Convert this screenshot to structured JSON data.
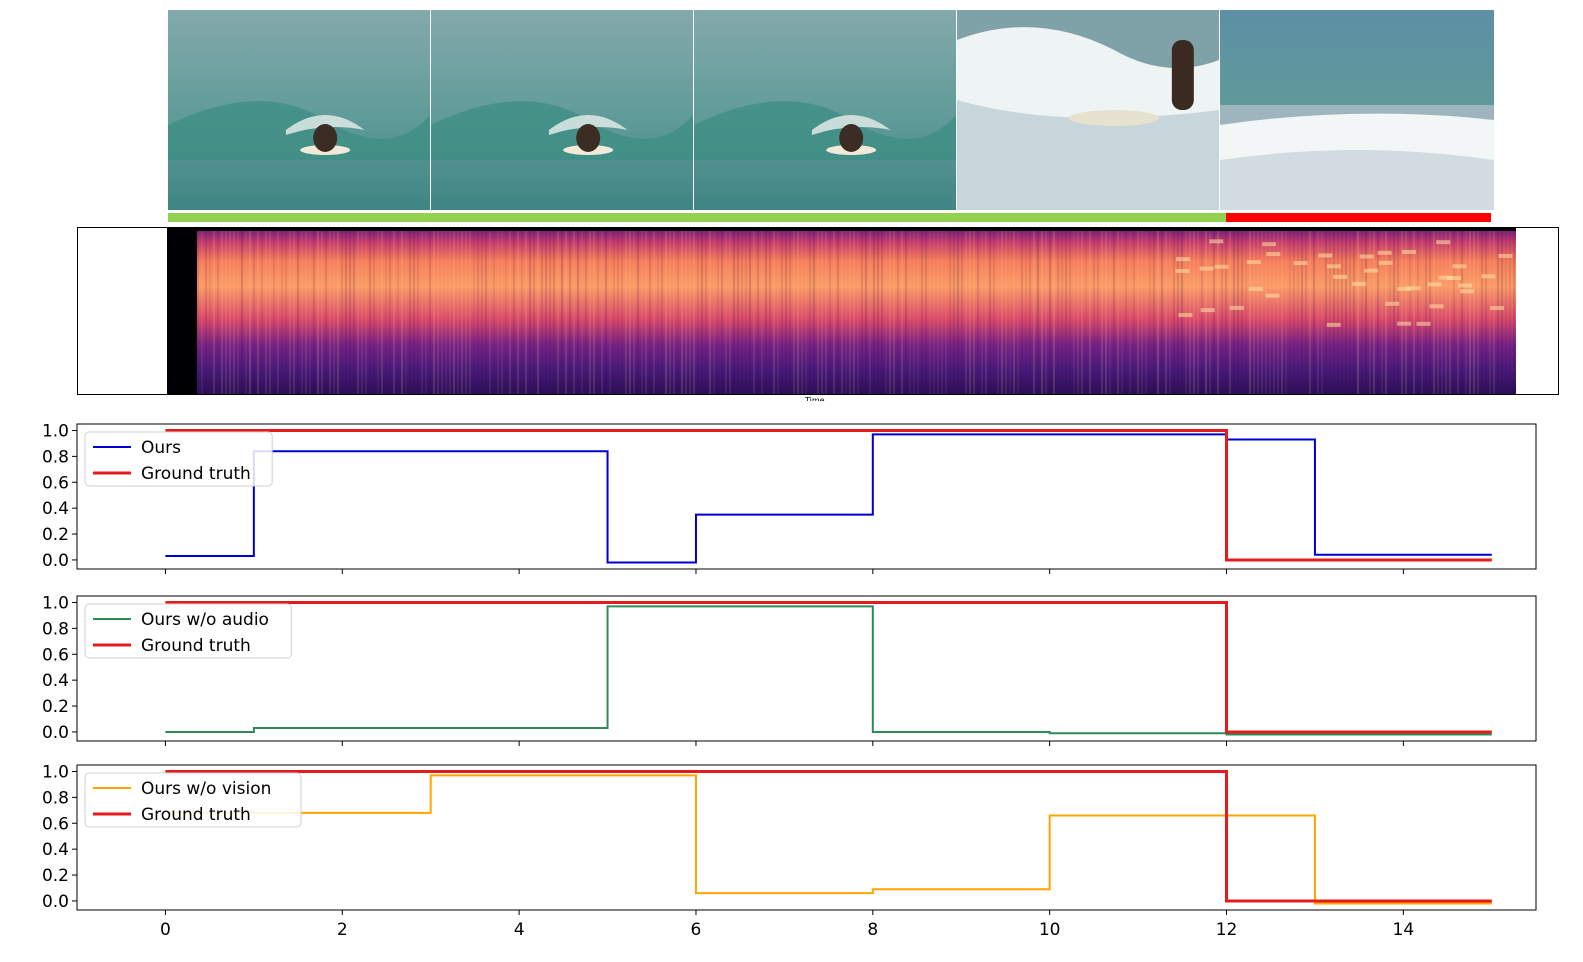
{
  "frames": [
    {
      "name": "frame-1-paddling",
      "scene": "surfer paddling on wave"
    },
    {
      "name": "frame-2-paddling",
      "scene": "surfer paddling"
    },
    {
      "name": "frame-3-popup",
      "scene": "surfer popping up"
    },
    {
      "name": "frame-4-riding",
      "scene": "surfer standing in white water"
    },
    {
      "name": "frame-5-whitewater",
      "scene": "white water, no surfer"
    }
  ],
  "status_bar": {
    "segments": [
      {
        "state": "match",
        "start": 0,
        "end": 12,
        "color": "#92d050"
      },
      {
        "state": "mismatch",
        "start": 12,
        "end": 15,
        "color": "#ff0000"
      }
    ]
  },
  "spectrogram": {
    "xlabel": "Time",
    "colormap": "magma"
  },
  "colors": {
    "ours": "#0000cc",
    "ours_wo_audio": "#2e8b57",
    "ours_wo_vision": "#ffa500",
    "ground_truth": "#e41a1c"
  },
  "chart_data": [
    {
      "type": "line",
      "drawstyle": "steps-post",
      "xlim": [
        -1,
        15.5
      ],
      "ylim": [
        -0.07,
        1.05
      ],
      "yticks": [
        "0.0",
        "0.2",
        "0.4",
        "0.6",
        "0.8",
        "1.0"
      ],
      "xticks": [
        "0",
        "2",
        "4",
        "6",
        "8",
        "10",
        "12",
        "14"
      ],
      "show_xtick_labels": false,
      "legend_position": "upper-left",
      "series": [
        {
          "name": "Ours",
          "color": "#0000cc",
          "x": [
            0,
            1,
            5,
            6,
            8,
            12,
            13,
            15
          ],
          "y": [
            0.03,
            0.84,
            -0.02,
            0.35,
            0.97,
            0.93,
            0.04,
            0.04
          ]
        },
        {
          "name": "Ground truth",
          "color": "#e41a1c",
          "x": [
            0,
            12,
            15
          ],
          "y": [
            1.0,
            0.0,
            0.0
          ]
        }
      ]
    },
    {
      "type": "line",
      "drawstyle": "steps-post",
      "xlim": [
        -1,
        15.5
      ],
      "ylim": [
        -0.07,
        1.05
      ],
      "yticks": [
        "0.0",
        "0.2",
        "0.4",
        "0.6",
        "0.8",
        "1.0"
      ],
      "xticks": [
        "0",
        "2",
        "4",
        "6",
        "8",
        "10",
        "12",
        "14"
      ],
      "show_xtick_labels": false,
      "legend_position": "upper-left",
      "series": [
        {
          "name": "Ours w/o audio",
          "color": "#2e8b57",
          "x": [
            0,
            1,
            5,
            8,
            10,
            12,
            15
          ],
          "y": [
            0.0,
            0.03,
            0.97,
            0.0,
            -0.01,
            -0.02,
            -0.02
          ]
        },
        {
          "name": "Ground truth",
          "color": "#e41a1c",
          "x": [
            0,
            12,
            15
          ],
          "y": [
            1.0,
            0.0,
            0.0
          ]
        }
      ]
    },
    {
      "type": "line",
      "drawstyle": "steps-post",
      "xlim": [
        -1,
        15.5
      ],
      "ylim": [
        -0.07,
        1.05
      ],
      "yticks": [
        "0.0",
        "0.2",
        "0.4",
        "0.6",
        "0.8",
        "1.0"
      ],
      "xticks": [
        "0",
        "2",
        "4",
        "6",
        "8",
        "10",
        "12",
        "14"
      ],
      "show_xtick_labels": true,
      "legend_position": "upper-left",
      "series": [
        {
          "name": "Ours w/o vision",
          "color": "#ffa500",
          "x": [
            0,
            3,
            6,
            8,
            10,
            13,
            15
          ],
          "y": [
            0.68,
            0.97,
            0.06,
            0.09,
            0.66,
            -0.02,
            -0.02
          ]
        },
        {
          "name": "Ground truth",
          "color": "#e41a1c",
          "x": [
            0,
            12,
            15
          ],
          "y": [
            1.0,
            0.0,
            0.0
          ]
        }
      ]
    }
  ]
}
